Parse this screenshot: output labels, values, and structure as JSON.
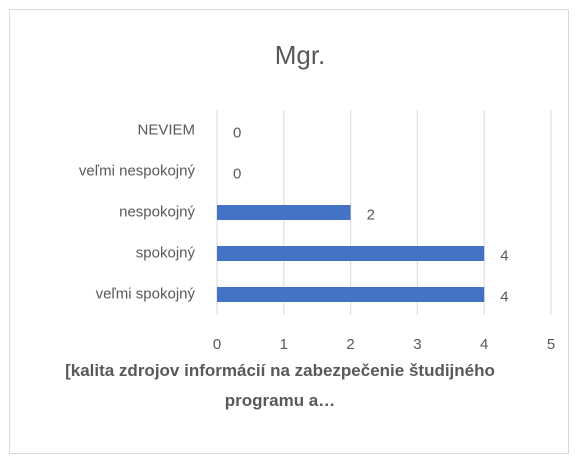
{
  "chart_data": {
    "type": "bar",
    "orientation": "horizontal",
    "title": "Mgr.",
    "x_label": "[kalita zdrojov informácií na zabezpečenie študijného programu a…",
    "categories": [
      "NEVIEM",
      "veľmi nespokojný",
      "nespokojný",
      "spokojný",
      "veľmi spokojný"
    ],
    "values": [
      0,
      0,
      2,
      4,
      4
    ],
    "color": "#4472c4",
    "xlim": [
      0,
      5
    ],
    "xticks": [
      0,
      1,
      2,
      3,
      4,
      5
    ],
    "grid": true
  }
}
